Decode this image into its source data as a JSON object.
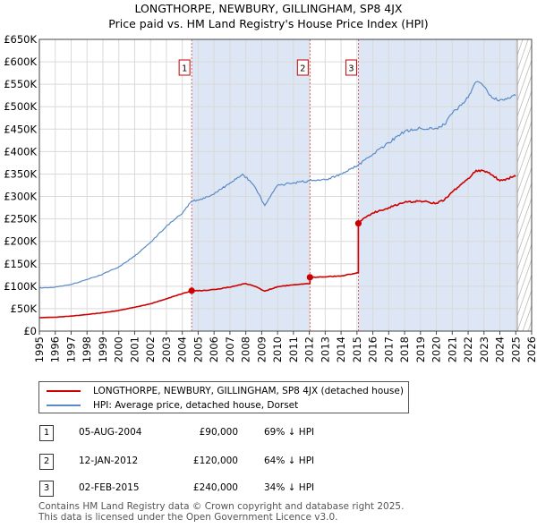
{
  "title_line1": "LONGTHORPE, NEWBURY, GILLINGHAM, SP8 4JX",
  "title_line2": "Price paid vs. HM Land Registry's House Price Index (HPI)",
  "chart_data": {
    "type": "line",
    "title": "LONGTHORPE, NEWBURY, GILLINGHAM, SP8 4JX — Price paid vs. HM Land Registry's House Price Index (HPI)",
    "xlim": [
      1995,
      2026
    ],
    "ylim": [
      0,
      650000
    ],
    "x_ticks": [
      1995,
      1996,
      1997,
      1998,
      1999,
      2000,
      2001,
      2002,
      2003,
      2004,
      2005,
      2006,
      2007,
      2008,
      2009,
      2010,
      2011,
      2012,
      2013,
      2014,
      2015,
      2016,
      2017,
      2018,
      2019,
      2020,
      2021,
      2022,
      2023,
      2024,
      2025,
      2026
    ],
    "y_ticks": [
      {
        "value": 0,
        "label": "£0"
      },
      {
        "value": 50000,
        "label": "£50K"
      },
      {
        "value": 100000,
        "label": "£100K"
      },
      {
        "value": 150000,
        "label": "£150K"
      },
      {
        "value": 200000,
        "label": "£200K"
      },
      {
        "value": 250000,
        "label": "£250K"
      },
      {
        "value": 300000,
        "label": "£300K"
      },
      {
        "value": 350000,
        "label": "£350K"
      },
      {
        "value": 400000,
        "label": "£400K"
      },
      {
        "value": 450000,
        "label": "£450K"
      },
      {
        "value": 500000,
        "label": "£500K"
      },
      {
        "value": 550000,
        "label": "£550K"
      },
      {
        "value": 600000,
        "label": "£600K"
      },
      {
        "value": 650000,
        "label": "£650K"
      }
    ],
    "grid": true,
    "data_end_year": 2025.1,
    "series": [
      {
        "name": "LONGTHORPE, NEWBURY, GILLINGHAM, SP8 4JX (detached house)",
        "color": "#cc0000",
        "x": [
          1995.0,
          1996.0,
          1997.0,
          1998.0,
          1999.0,
          2000.0,
          2001.0,
          2002.0,
          2003.0,
          2004.0,
          2004.59,
          2004.59,
          2005.5,
          2006.5,
          2007.5,
          2008.0,
          2008.7,
          2009.2,
          2010.0,
          2011.0,
          2012.04,
          2012.04,
          2013.0,
          2014.0,
          2015.09,
          2015.09,
          2015.4,
          2016.0,
          2017.0,
          2018.0,
          2019.0,
          2020.0,
          2020.5,
          2021.0,
          2022.0,
          2022.5,
          2023.0,
          2023.5,
          2024.0,
          2024.5,
          2025.0
        ],
        "values": [
          30000,
          31000,
          33500,
          37000,
          41000,
          46000,
          53000,
          61000,
          72000,
          83500,
          90000,
          90000,
          90500,
          95000,
          102000,
          106000,
          98000,
          89000,
          99000,
          103000,
          106000,
          120000,
          121000,
          123000,
          130000,
          240000,
          251000,
          263000,
          275000,
          287000,
          290000,
          285000,
          292000,
          310000,
          340000,
          358000,
          357000,
          348000,
          335000,
          340000,
          345000
        ]
      },
      {
        "name": "HPI: Average price, detached house, Dorset",
        "color": "#5b8ac6",
        "x": [
          1995.0,
          1996.0,
          1997.0,
          1998.0,
          1999.0,
          2000.0,
          2001.0,
          2002.0,
          2003.0,
          2004.0,
          2004.59,
          2005.0,
          2006.0,
          2007.0,
          2007.8,
          2008.5,
          2009.2,
          2010.0,
          2011.0,
          2012.0,
          2013.0,
          2014.0,
          2015.09,
          2016.0,
          2017.0,
          2018.0,
          2019.0,
          2020.0,
          2020.5,
          2021.0,
          2022.0,
          2022.5,
          2023.0,
          2023.5,
          2024.0,
          2024.5,
          2025.0
        ],
        "values": [
          96000,
          98000,
          104000,
          115000,
          127000,
          143000,
          167000,
          198000,
          234000,
          262000,
          290000,
          292000,
          305000,
          330000,
          350000,
          325000,
          280000,
          325000,
          330000,
          335000,
          337000,
          350000,
          370000,
          394000,
          420000,
          445000,
          452000,
          452000,
          460000,
          485000,
          520000,
          555000,
          545000,
          520000,
          515000,
          520000,
          525000
        ]
      }
    ],
    "transactions": [
      {
        "num": "1",
        "x": 2004.59,
        "price_value": 90000,
        "date": "05-AUG-2004",
        "price": "£90,000",
        "hpi": "69% ↓ HPI"
      },
      {
        "num": "2",
        "x": 2012.04,
        "price_value": 120000,
        "date": "12-JAN-2012",
        "price": "£120,000",
        "hpi": "64% ↓ HPI"
      },
      {
        "num": "3",
        "x": 2015.09,
        "price_value": 240000,
        "date": "02-FEB-2015",
        "price": "£240,000",
        "hpi": "34% ↓ HPI"
      }
    ],
    "colors": {
      "price_paid": "#cc0000",
      "hpi": "#5b8ac6",
      "shade": "#dde6f5",
      "grid": "#d9d9d9"
    }
  },
  "legend": {
    "price_paid": "LONGTHORPE, NEWBURY, GILLINGHAM, SP8 4JX (detached house)",
    "hpi": "HPI: Average price, detached house, Dorset"
  },
  "footer": {
    "line1": "Contains HM Land Registry data © Crown copyright and database right 2025.",
    "line2": "This data is licensed under the Open Government Licence v3.0."
  }
}
